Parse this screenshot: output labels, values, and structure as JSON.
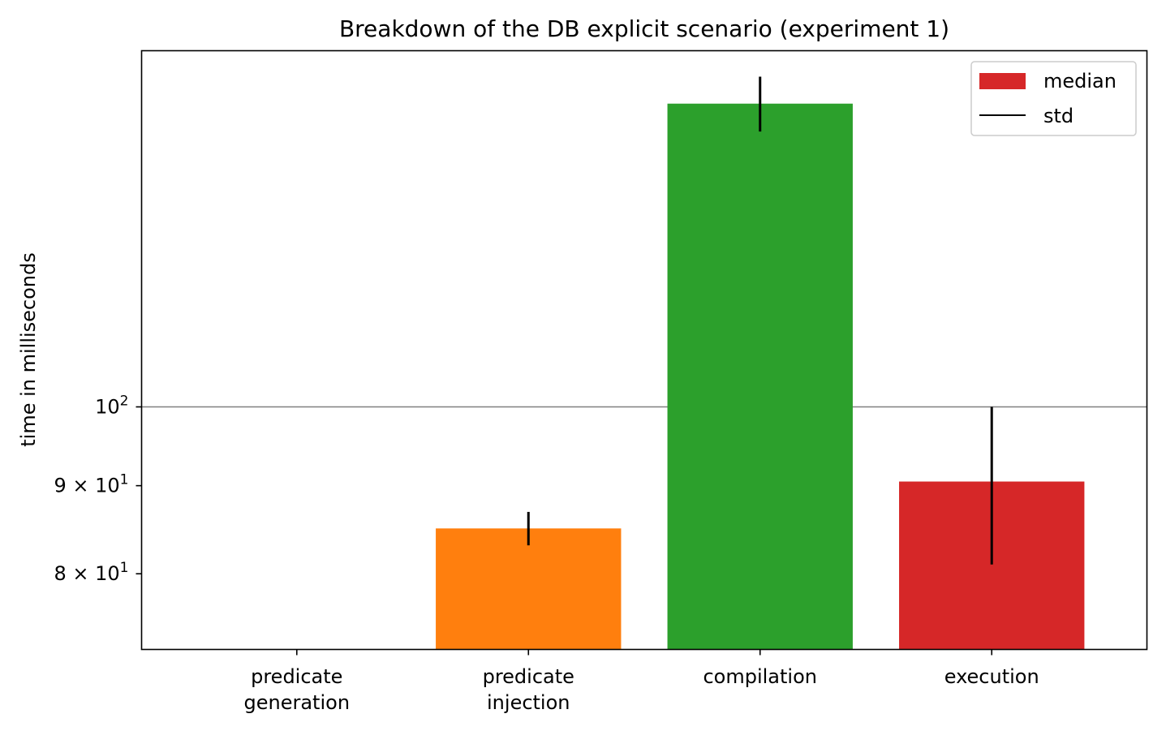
{
  "chart_data": {
    "type": "bar",
    "title": "Breakdown of the DB explicit scenario (experiment 1)",
    "xlabel": "",
    "ylabel": "time in milliseconds",
    "yscale": "log",
    "ylim": [
      72.3,
      161
    ],
    "categories": [
      [
        "predicate",
        "generation"
      ],
      [
        "predicate",
        "injection"
      ],
      [
        "compilation"
      ],
      [
        "execution"
      ]
    ],
    "values": [
      0,
      85,
      150,
      90.5
    ],
    "std": [
      0,
      1.9,
      5.5,
      9.5
    ],
    "colors": [
      "#1f77b4",
      "#ff7f0e",
      "#2ca02c",
      "#d62728"
    ],
    "yticks": [
      {
        "value": 80,
        "mantissa": "8",
        "sep": "×",
        "base": "10",
        "exp": "1"
      },
      {
        "value": 90,
        "mantissa": "9",
        "sep": "×",
        "base": "10",
        "exp": "1"
      },
      {
        "value": 100,
        "mantissa": "",
        "sep": "",
        "base": "10",
        "exp": "2"
      }
    ],
    "grid": "horizontal at 10^2",
    "legend": {
      "position": "top-right",
      "entries": [
        {
          "label": "median",
          "kind": "patch",
          "color": "#d62728"
        },
        {
          "label": "std",
          "kind": "line",
          "color": "#000000"
        }
      ]
    }
  }
}
